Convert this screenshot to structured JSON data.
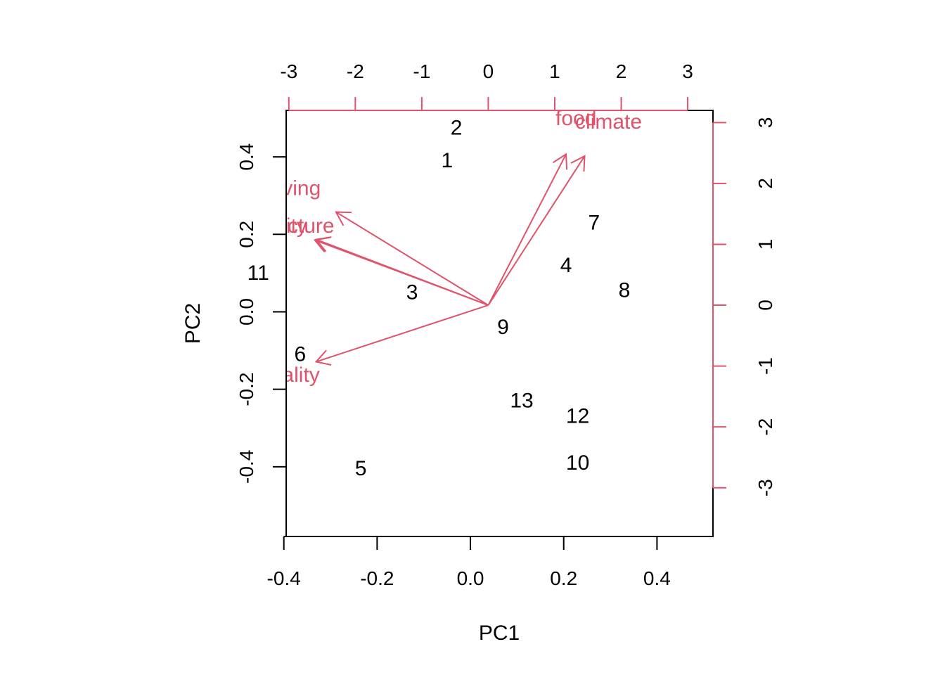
{
  "colors": {
    "axis": "#000000",
    "loadings": "#DF536B",
    "background": "#ffffff"
  },
  "chart_data": {
    "type": "scatter",
    "subtype": "biplot",
    "title": "",
    "xlabel": "PC1",
    "ylabel": "PC2",
    "xlim": [
      -0.395,
      0.52
    ],
    "ylim": [
      -0.58,
      0.52
    ],
    "xticks": [
      -0.4,
      -0.2,
      0.0,
      0.2,
      0.4
    ],
    "xtick_labels": [
      "-0.4",
      "-0.2",
      "0.0",
      "0.2",
      "0.4"
    ],
    "yticks": [
      -0.4,
      -0.2,
      0.0,
      0.2,
      0.4
    ],
    "ytick_labels": [
      "-0.4",
      "-0.2",
      "0.0",
      "0.2",
      "0.4"
    ],
    "top_axis": {
      "ticks": [
        -3,
        -2,
        -1,
        0,
        1,
        2,
        3
      ],
      "tick_labels": [
        "-3",
        "-2",
        "-1",
        "0",
        "1",
        "2",
        "3"
      ],
      "lim": [
        -3.04,
        3.38
      ]
    },
    "right_axis": {
      "ticks": [
        -3,
        -2,
        -1,
        0,
        1,
        2,
        3
      ],
      "tick_labels": [
        "-3",
        "-2",
        "-1",
        "0",
        "1",
        "2",
        "3"
      ],
      "lim": [
        -3.8,
        3.2
      ]
    },
    "observations": [
      {
        "label": "1",
        "x": -0.05,
        "y": 0.39
      },
      {
        "label": "2",
        "x": -0.03,
        "y": 0.475
      },
      {
        "label": "3",
        "x": -0.125,
        "y": 0.05
      },
      {
        "label": "4",
        "x": 0.205,
        "y": 0.12
      },
      {
        "label": "5",
        "x": -0.235,
        "y": -0.405
      },
      {
        "label": "6",
        "x": -0.365,
        "y": -0.11
      },
      {
        "label": "7",
        "x": 0.265,
        "y": 0.23
      },
      {
        "label": "8",
        "x": 0.33,
        "y": 0.055
      },
      {
        "label": "9",
        "x": 0.07,
        "y": -0.04
      },
      {
        "label": "10",
        "x": 0.23,
        "y": -0.39
      },
      {
        "label": "11",
        "x": -0.455,
        "y": 0.1
      },
      {
        "label": "12",
        "x": 0.23,
        "y": -0.27
      },
      {
        "label": "13",
        "x": 0.11,
        "y": -0.23
      }
    ],
    "loadings": [
      {
        "label": "food",
        "x": 1.17,
        "y": 2.48,
        "label_x": 1.32,
        "label_y": 3.07
      },
      {
        "label": "climate",
        "x": 1.45,
        "y": 2.45,
        "label_x": 1.81,
        "label_y": 3.01
      },
      {
        "label": "living",
        "x": -2.29,
        "y": 1.53,
        "label_x": -2.88,
        "label_y": 1.92
      },
      {
        "label": "security",
        "x": -2.61,
        "y": 1.07,
        "label_x": -3.27,
        "label_y": 1.3
      },
      {
        "label": "infrastructure",
        "x": -2.59,
        "y": 1.08,
        "label_x": -3.24,
        "label_y": 1.3
      },
      {
        "label": "hospitality",
        "x": -2.59,
        "y": -0.93,
        "label_x": -3.24,
        "label_y": -1.15
      }
    ]
  }
}
